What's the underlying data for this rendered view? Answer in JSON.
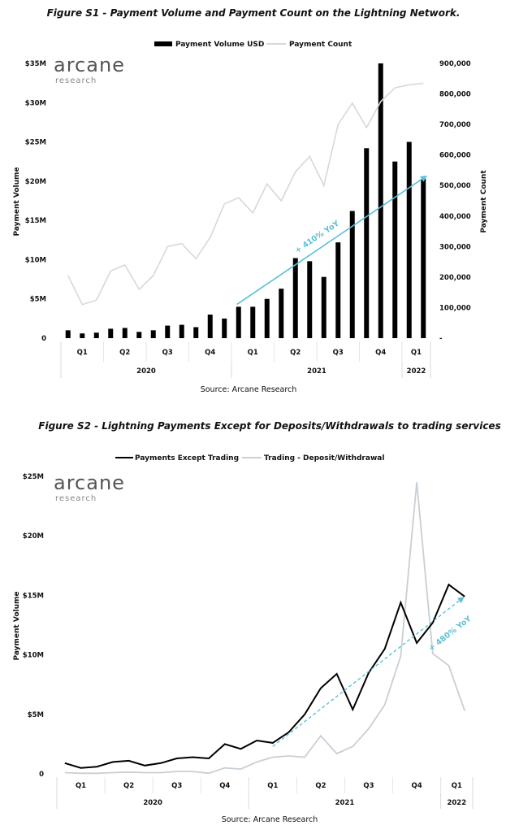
{
  "chart_data": [
    {
      "type": "bar",
      "title": "Figure S1 - Payment Volume and Payment Count on the Lightning Network.",
      "ylabel": "Payment Volume",
      "y2label": "Payment Count",
      "ylim": [
        0,
        35
      ],
      "y2lim": [
        0,
        900000
      ],
      "y_ticks": [
        "0",
        "$5M",
        "$10M",
        "$15M",
        "$20M",
        "$25M",
        "$30M",
        "$35M"
      ],
      "y2_ticks": [
        "-",
        "100,000",
        "200,000",
        "300,000",
        "400,000",
        "500,000",
        "600,000",
        "700,000",
        "800,000",
        "900,000"
      ],
      "quarter_labels": [
        "Q1",
        "Q2",
        "Q3",
        "Q4",
        "Q1",
        "Q2",
        "Q3",
        "Q4",
        "Q1"
      ],
      "year_labels": [
        "2020",
        "2021",
        "2022"
      ],
      "legend_position": "top-center",
      "series": [
        {
          "name": "Payment Volume USD",
          "kind": "bar",
          "axis": "left",
          "color": "#000000",
          "values": [
            1.0,
            0.6,
            0.7,
            1.2,
            1.3,
            0.8,
            1.0,
            1.6,
            1.7,
            1.4,
            3.0,
            2.5,
            4.0,
            4.0,
            5.0,
            6.3,
            10.2,
            9.8,
            7.8,
            12.2,
            16.2,
            24.2,
            35.0,
            22.5,
            25.0,
            20.3
          ]
        },
        {
          "name": "Payment Count",
          "kind": "line",
          "axis": "right",
          "color": "#d3d9de",
          "values": [
            205000,
            110000,
            125000,
            220000,
            240000,
            160000,
            205000,
            300000,
            310000,
            260000,
            330000,
            440000,
            460000,
            410000,
            505000,
            450000,
            545000,
            595000,
            500000,
            700000,
            770000,
            690000,
            775000,
            820000,
            830000,
            835000
          ]
        }
      ],
      "annotation": "+ 410% YoY",
      "source": "Source: Arcane Research",
      "brand": "arcane",
      "brand_sub": "research"
    },
    {
      "type": "line",
      "title": "Figure S2 - Lightning Payments Except for Deposits/Withdrawals to trading services",
      "ylabel": "Payment Volume",
      "ylim": [
        0,
        25
      ],
      "y_ticks": [
        "0",
        "$5M",
        "$10M",
        "$15M",
        "$20M",
        "$25M"
      ],
      "quarter_labels": [
        "Q1",
        "Q2",
        "Q3",
        "Q4",
        "Q1",
        "Q2",
        "Q3",
        "Q4",
        "Q1"
      ],
      "year_labels": [
        "2020",
        "2021",
        "2022"
      ],
      "legend_position": "top-center",
      "series": [
        {
          "name": "Payments Except Trading",
          "color": "#000000",
          "values": [
            0.9,
            0.5,
            0.6,
            1.0,
            1.1,
            0.7,
            0.9,
            1.3,
            1.4,
            1.3,
            2.5,
            2.1,
            2.8,
            2.6,
            3.5,
            5.0,
            7.2,
            8.4,
            5.4,
            8.5,
            10.5,
            14.4,
            11.0,
            12.7,
            15.9,
            14.9
          ]
        },
        {
          "name": "Trading - Deposit/Withdrawal",
          "color": "#c8cfd5",
          "values": [
            0.1,
            0.05,
            0.05,
            0.1,
            0.15,
            0.1,
            0.1,
            0.2,
            0.2,
            0.05,
            0.5,
            0.4,
            1.0,
            1.4,
            1.5,
            1.4,
            3.2,
            1.7,
            2.3,
            3.8,
            5.8,
            9.9,
            24.5,
            10.1,
            9.1,
            5.3
          ]
        }
      ],
      "annotation": "+ 480% YoY",
      "source": "Source: Arcane Research",
      "brand": "arcane",
      "brand_sub": "research"
    }
  ],
  "colors": {
    "trend_arrow": "#5bc0d6",
    "grid_divider": "#d9d9d9"
  }
}
